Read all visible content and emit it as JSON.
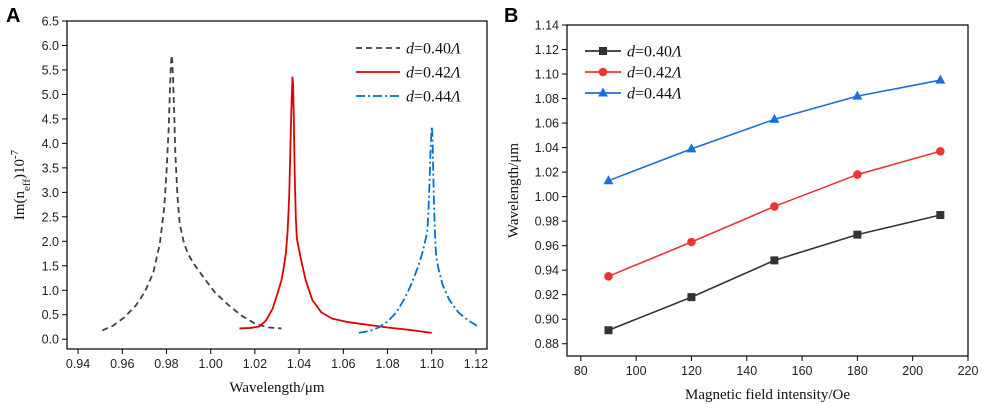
{
  "chart_data": [
    {
      "panel": "A",
      "type": "line",
      "xlabel": "Wavelength/μm",
      "ylabel": "Im(n",
      "ylabel_sub": "eff",
      "ylabel_tail": ")10",
      "ylabel_sup": "-7",
      "xlim": [
        0.935,
        1.125
      ],
      "ylim": [
        -0.2,
        6.5
      ],
      "xticks": [
        0.94,
        0.96,
        0.98,
        1.0,
        1.02,
        1.04,
        1.06,
        1.08,
        1.1,
        1.12
      ],
      "xtick_labels": [
        "0.94",
        "0.96",
        "0.98",
        "1.00",
        "1.02",
        "1.04",
        "1.06",
        "1.08",
        "1.10",
        "1.12"
      ],
      "yticks": [
        0.0,
        0.5,
        1.0,
        1.5,
        2.0,
        2.5,
        3.0,
        3.5,
        4.0,
        4.5,
        5.0,
        5.5,
        6.0,
        6.5
      ],
      "ytick_labels": [
        "0.0",
        "0.5",
        "1.0",
        "1.5",
        "2.0",
        "2.5",
        "3.0",
        "3.5",
        "4.0",
        "4.5",
        "5.0",
        "5.5",
        "6.0",
        "6.5"
      ],
      "legend_position": "top-right",
      "series": [
        {
          "name": "d=0.40Λ",
          "label_italic": "d",
          "label_mid": "=0.40",
          "label_tail": "Λ",
          "color": "#404040",
          "dash": "dash",
          "x": [
            0.951,
            0.956,
            0.961,
            0.966,
            0.97,
            0.974,
            0.977,
            0.979,
            0.98,
            0.981,
            0.9815,
            0.982,
            0.9823,
            0.9826,
            0.983,
            0.9835,
            0.984,
            0.985,
            0.986,
            0.988,
            0.99,
            0.993,
            0.997,
            1.002,
            1.008,
            1.014,
            1.02,
            1.026,
            1.032
          ],
          "y": [
            0.18,
            0.28,
            0.45,
            0.68,
            0.95,
            1.35,
            1.95,
            2.7,
            3.4,
            4.3,
            5.0,
            5.6,
            5.8,
            5.7,
            5.3,
            4.6,
            3.8,
            2.9,
            2.35,
            1.95,
            1.72,
            1.5,
            1.25,
            0.95,
            0.7,
            0.48,
            0.32,
            0.24,
            0.22
          ]
        },
        {
          "name": "d=0.42Λ",
          "label_italic": "d",
          "label_mid": "=0.42",
          "label_tail": "Λ",
          "color": "#e00000",
          "dash": "solid",
          "x": [
            1.013,
            1.018,
            1.022,
            1.025,
            1.028,
            1.03,
            1.032,
            1.033,
            1.034,
            1.0348,
            1.0355,
            1.036,
            1.0365,
            1.037,
            1.0373,
            1.0376,
            1.038,
            1.0385,
            1.039,
            1.04,
            1.041,
            1.043,
            1.046,
            1.05,
            1.055,
            1.062,
            1.07,
            1.08,
            1.09,
            1.1
          ],
          "y": [
            0.22,
            0.23,
            0.26,
            0.38,
            0.62,
            0.9,
            1.2,
            1.45,
            1.75,
            2.2,
            2.9,
            3.8,
            4.7,
            5.35,
            5.2,
            4.5,
            3.4,
            2.5,
            2.05,
            1.82,
            1.6,
            1.2,
            0.8,
            0.55,
            0.42,
            0.35,
            0.3,
            0.24,
            0.19,
            0.13
          ]
        },
        {
          "name": "d=0.44Λ",
          "label_italic": "d",
          "label_mid": "=0.44",
          "label_tail": "Λ",
          "color": "#0070c8",
          "dash": "dashdot",
          "x": [
            1.067,
            1.072,
            1.076,
            1.08,
            1.084,
            1.088,
            1.091,
            1.094,
            1.096,
            1.097,
            1.098,
            1.0985,
            1.099,
            1.0995,
            1.1,
            1.1003,
            1.1006,
            1.101,
            1.1015,
            1.102,
            1.103,
            1.105,
            1.108,
            1.112,
            1.116,
            1.121
          ],
          "y": [
            0.13,
            0.17,
            0.24,
            0.36,
            0.55,
            0.85,
            1.15,
            1.5,
            1.8,
            2.0,
            2.2,
            2.6,
            3.2,
            3.9,
            4.35,
            4.2,
            3.6,
            2.8,
            2.1,
            1.7,
            1.45,
            1.1,
            0.8,
            0.55,
            0.4,
            0.26
          ]
        }
      ]
    },
    {
      "panel": "B",
      "type": "line",
      "xlabel": "Magnetic field intensity/Oe",
      "ylabel": "Wavelength/μm",
      "xlim": [
        75,
        220
      ],
      "ylim": [
        0.87,
        1.14
      ],
      "xticks": [
        80,
        100,
        120,
        140,
        160,
        180,
        200,
        220
      ],
      "xtick_labels": [
        "80",
        "100",
        "120",
        "140",
        "160",
        "180",
        "200",
        "220"
      ],
      "yticks": [
        0.88,
        0.9,
        0.92,
        0.94,
        0.96,
        0.98,
        1.0,
        1.02,
        1.04,
        1.06,
        1.08,
        1.1,
        1.12,
        1.14
      ],
      "ytick_labels": [
        "0.88",
        "0.90",
        "0.92",
        "0.94",
        "0.96",
        "0.98",
        "1.00",
        "1.02",
        "1.04",
        "1.06",
        "1.08",
        "1.10",
        "1.12",
        "1.14"
      ],
      "legend_position": "top-left",
      "categories": [
        90,
        120,
        150,
        180,
        210
      ],
      "series": [
        {
          "name": "d=0.40Λ",
          "label_italic": "d",
          "label_mid": "=0.40",
          "label_tail": "Λ",
          "color": "#333333",
          "marker": "square",
          "values": [
            0.891,
            0.918,
            0.948,
            0.969,
            0.985
          ]
        },
        {
          "name": "d=0.42Λ",
          "label_italic": "d",
          "label_mid": "=0.42",
          "label_tail": "Λ",
          "color": "#ee3333",
          "marker": "circle",
          "values": [
            0.935,
            0.963,
            0.992,
            1.018,
            1.037
          ]
        },
        {
          "name": "d=0.44Λ",
          "label_italic": "d",
          "label_mid": "=0.44",
          "label_tail": "Λ",
          "color": "#1a6fd8",
          "marker": "triangle",
          "values": [
            1.013,
            1.039,
            1.063,
            1.082,
            1.095
          ]
        }
      ]
    }
  ]
}
